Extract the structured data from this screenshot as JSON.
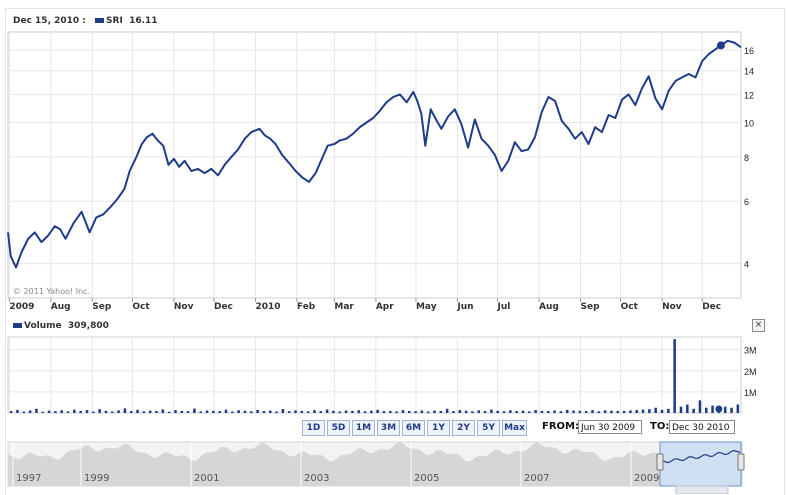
{
  "header": {
    "date": "Dec 15, 2010 :",
    "symbol": "SRI",
    "price": "16.11"
  },
  "copyright": "© 2011 Yahoo! Inc.",
  "volume_header": {
    "label": "Volume",
    "value": "309,800"
  },
  "close_label": "×",
  "x_axis_labels": [
    "2009",
    "Aug",
    "Sep",
    "Oct",
    "Nov",
    "Dec",
    "2010",
    "Feb",
    "Mar",
    "Apr",
    "May",
    "Jun",
    "Jul",
    "Aug",
    "Sep",
    "Oct",
    "Nov",
    "Dec"
  ],
  "range_buttons": [
    "1D",
    "5D",
    "1M",
    "3M",
    "6M",
    "1Y",
    "2Y",
    "5Y",
    "Max"
  ],
  "date_range": {
    "from_label": "FROM:",
    "from_value": "Jun 30 2009",
    "to_label": "TO:",
    "to_value": "Dec 30 2010"
  },
  "navigator_years": [
    "1997",
    "1999",
    "2001",
    "2003",
    "2005",
    "2007",
    "2009"
  ],
  "colors": {
    "line": "#1f3c88",
    "grid": "#e6e6e6",
    "navigator_fill": "#d6d6d6",
    "navigator_window": "#cfe0f2"
  },
  "chart_data": [
    {
      "type": "line",
      "title": "SRI",
      "y_scale": "log",
      "ylim": [
        3.2,
        18
      ],
      "y_ticks": [
        4,
        6,
        8,
        10,
        12,
        14,
        16
      ],
      "x": [
        "2009-06-30",
        "2009-07-02",
        "2009-07-06",
        "2009-07-10",
        "2009-07-15",
        "2009-07-20",
        "2009-07-25",
        "2009-07-30",
        "2009-08-04",
        "2009-08-08",
        "2009-08-12",
        "2009-08-18",
        "2009-08-24",
        "2009-08-30",
        "2009-09-04",
        "2009-09-09",
        "2009-09-15",
        "2009-09-20",
        "2009-09-25",
        "2009-09-29",
        "2009-10-04",
        "2009-10-08",
        "2009-10-12",
        "2009-10-16",
        "2009-10-20",
        "2009-10-24",
        "2009-10-28",
        "2009-11-01",
        "2009-11-05",
        "2009-11-09",
        "2009-11-14",
        "2009-11-19",
        "2009-11-24",
        "2009-11-29",
        "2009-12-04",
        "2009-12-09",
        "2009-12-14",
        "2009-12-19",
        "2009-12-24",
        "2009-12-29",
        "2010-01-04",
        "2010-01-08",
        "2010-01-12",
        "2010-01-16",
        "2010-01-21",
        "2010-01-26",
        "2010-01-31",
        "2010-02-05",
        "2010-02-10",
        "2010-02-15",
        "2010-02-19",
        "2010-02-24",
        "2010-03-01",
        "2010-03-05",
        "2010-03-10",
        "2010-03-15",
        "2010-03-20",
        "2010-03-25",
        "2010-03-30",
        "2010-04-04",
        "2010-04-09",
        "2010-04-14",
        "2010-04-19",
        "2010-04-24",
        "2010-04-29",
        "2010-05-02",
        "2010-05-05",
        "2010-05-08",
        "2010-05-12",
        "2010-05-16",
        "2010-05-20",
        "2010-05-25",
        "2010-05-30",
        "2010-06-04",
        "2010-06-09",
        "2010-06-14",
        "2010-06-19",
        "2010-06-24",
        "2010-06-29",
        "2010-07-04",
        "2010-07-09",
        "2010-07-14",
        "2010-07-19",
        "2010-07-24",
        "2010-07-29",
        "2010-08-03",
        "2010-08-08",
        "2010-08-13",
        "2010-08-18",
        "2010-08-23",
        "2010-08-28",
        "2010-09-02",
        "2010-09-07",
        "2010-09-12",
        "2010-09-17",
        "2010-09-22",
        "2010-09-27",
        "2010-10-02",
        "2010-10-07",
        "2010-10-12",
        "2010-10-17",
        "2010-10-22",
        "2010-10-27",
        "2010-11-01",
        "2010-11-06",
        "2010-11-11",
        "2010-11-16",
        "2010-11-21",
        "2010-11-26",
        "2010-12-01",
        "2010-12-06",
        "2010-12-11",
        "2010-12-15",
        "2010-12-20",
        "2010-12-25",
        "2010-12-30"
      ],
      "values": [
        4.9,
        4.2,
        3.9,
        4.3,
        4.7,
        4.9,
        4.6,
        4.8,
        5.1,
        5.0,
        4.7,
        5.2,
        5.6,
        4.9,
        5.4,
        5.5,
        5.8,
        6.1,
        6.5,
        7.3,
        8.0,
        8.7,
        9.1,
        9.3,
        8.9,
        8.6,
        7.6,
        7.9,
        7.5,
        7.8,
        7.3,
        7.4,
        7.2,
        7.4,
        7.1,
        7.6,
        8.0,
        8.4,
        9.0,
        9.4,
        9.6,
        9.2,
        9.0,
        8.7,
        8.1,
        7.7,
        7.3,
        7.0,
        6.8,
        7.2,
        7.8,
        8.6,
        8.7,
        8.9,
        9.0,
        9.3,
        9.7,
        10.0,
        10.3,
        10.8,
        11.4,
        11.8,
        12.0,
        11.4,
        12.2,
        11.5,
        10.6,
        8.6,
        10.9,
        10.2,
        9.6,
        10.4,
        10.9,
        9.9,
        8.5,
        10.2,
        9.0,
        8.6,
        8.1,
        7.3,
        7.8,
        8.8,
        8.3,
        8.4,
        9.1,
        10.7,
        11.8,
        11.5,
        10.1,
        9.6,
        9.0,
        9.4,
        8.7,
        9.7,
        9.4,
        10.5,
        10.3,
        11.6,
        12.0,
        11.2,
        12.5,
        13.5,
        11.7,
        10.9,
        12.3,
        13.1,
        13.4,
        13.7,
        13.4,
        14.9,
        15.6,
        16.1,
        16.5,
        17.0,
        16.8,
        16.3
      ]
    },
    {
      "type": "bar",
      "title": "Volume",
      "y_ticks": [
        1000000,
        2000000,
        3000000
      ],
      "y_tick_labels": [
        "1M",
        "2M",
        "3M"
      ],
      "ylim": [
        0,
        3600000
      ],
      "values": [
        90000,
        150000,
        70000,
        120000,
        200000,
        60000,
        110000,
        85000,
        130000,
        75000,
        160000,
        95000,
        140000,
        65000,
        180000,
        105000,
        70000,
        125000,
        220000,
        90000,
        150000,
        80000,
        115000,
        100000,
        170000,
        60000,
        135000,
        95000,
        85000,
        210000,
        75000,
        120000,
        105000,
        90000,
        160000,
        70000,
        130000,
        110000,
        80000,
        145000,
        95000,
        115000,
        70000,
        190000,
        85000,
        125000,
        100000,
        75000,
        140000,
        90000,
        165000,
        105000,
        70000,
        120000,
        95000,
        130000,
        80000,
        110000,
        150000,
        90000,
        100000,
        75000,
        135000,
        95000,
        85000,
        120000,
        70000,
        115000,
        100000,
        200000,
        90000,
        140000,
        110000,
        80000,
        125000,
        95000,
        160000,
        105000,
        85000,
        130000,
        90000,
        110000,
        75000,
        140000,
        100000,
        95000,
        120000,
        85000,
        150000,
        115000,
        105000,
        90000,
        135000,
        80000,
        125000,
        110000,
        95000,
        100000,
        120000,
        140000,
        160000,
        180000,
        250000,
        150000,
        200000,
        3500000,
        300000,
        400000,
        200000,
        600000,
        250000,
        350000,
        309800,
        300000,
        250000,
        400000
      ]
    }
  ]
}
